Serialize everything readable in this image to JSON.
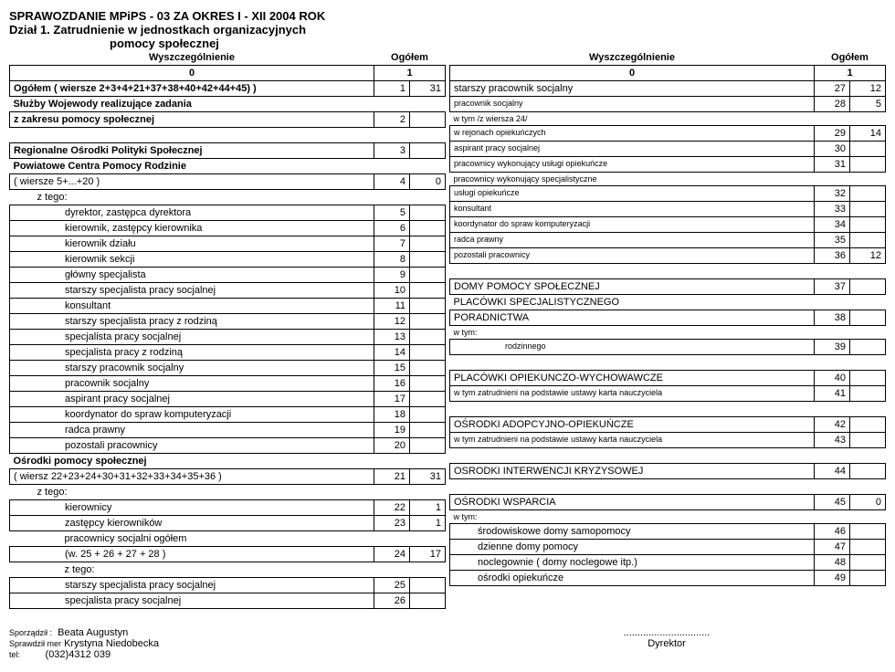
{
  "report": {
    "title_line1": "SPRAWOZDANIE MPiPS - 03 ZA OKRES I - XII  2004 ROK",
    "title_line2": "Dział 1.   Zatrudnienie w jednostkach organizacyjnych",
    "title_line3": "pomocy społecznej"
  },
  "left": {
    "header_label": "Wyszczególnienie",
    "header_total": "Ogółem",
    "hrow0": "0",
    "hrow1": "1",
    "rows": [
      {
        "label": "Ogółem ( wiersze 2+3+4+21+37+38+40+42+44+45) )",
        "n": "1",
        "v": "31",
        "indent": 0,
        "bold": true
      },
      {
        "label": "Służby Wojewody realizujące zadania",
        "n": "",
        "v": "",
        "indent": 0,
        "bold": true,
        "rowonly": true
      },
      {
        "label": "z zakresu pomocy społecznej",
        "n": "2",
        "v": "",
        "indent": 0,
        "bold": true
      },
      {
        "label": "",
        "n": "",
        "v": "",
        "indent": 0,
        "spacer": true
      },
      {
        "label": "Regionalne Ośrodki Polityki Społecznej",
        "n": "3",
        "v": "",
        "indent": 0,
        "bold": true
      },
      {
        "label": "Powiatowe Centra Pomocy Rodzinie",
        "n": "",
        "v": "",
        "indent": 0,
        "bold": true,
        "rowonly": true
      },
      {
        "label": "( wiersze 5+...+20 )",
        "n": "4",
        "v": "0",
        "indent": 0
      },
      {
        "label": "z tego:",
        "n": "",
        "v": "",
        "indent": 1,
        "textonly": true
      },
      {
        "label": "dyrektor, zastępca dyrektora",
        "n": "5",
        "v": "",
        "indent": 2
      },
      {
        "label": "kierownik, zastępcy kierownika",
        "n": "6",
        "v": "",
        "indent": 2
      },
      {
        "label": "kierownik działu",
        "n": "7",
        "v": "",
        "indent": 2
      },
      {
        "label": "kierownik sekcji",
        "n": "8",
        "v": "",
        "indent": 2
      },
      {
        "label": "główny specjalista",
        "n": "9",
        "v": "",
        "indent": 2
      },
      {
        "label": "starszy specjalista pracy socjalnej",
        "n": "10",
        "v": "",
        "indent": 2
      },
      {
        "label": "konsultant",
        "n": "11",
        "v": "",
        "indent": 2
      },
      {
        "label": "starszy specjalista pracy z rodziną",
        "n": "12",
        "v": "",
        "indent": 2
      },
      {
        "label": "specjalista pracy socjalnej",
        "n": "13",
        "v": "",
        "indent": 2
      },
      {
        "label": "specjalista pracy z rodziną",
        "n": "14",
        "v": "",
        "indent": 2
      },
      {
        "label": "starszy pracownik socjalny",
        "n": "15",
        "v": "",
        "indent": 2
      },
      {
        "label": "pracownik socjalny",
        "n": "16",
        "v": "",
        "indent": 2
      },
      {
        "label": "aspirant pracy socjalnej",
        "n": "17",
        "v": "",
        "indent": 2
      },
      {
        "label": "koordynator do spraw komputeryzacji",
        "n": "18",
        "v": "",
        "indent": 2
      },
      {
        "label": "radca prawny",
        "n": "19",
        "v": "",
        "indent": 2
      },
      {
        "label": "pozostali pracownicy",
        "n": "20",
        "v": "",
        "indent": 2
      },
      {
        "label": "Ośrodki pomocy społecznej",
        "n": "",
        "v": "",
        "indent": 0,
        "bold": true,
        "textonly": true
      },
      {
        "label": "( wiersz 22+23+24+30+31+32+33+34+35+36 )",
        "n": "21",
        "v": "31",
        "indent": 0
      },
      {
        "label": "z tego:",
        "n": "",
        "v": "",
        "indent": 1,
        "textonly": true
      },
      {
        "label": "kierownicy",
        "n": "22",
        "v": "1",
        "indent": 2
      },
      {
        "label": "zastępcy kierowników",
        "n": "23",
        "v": "1",
        "indent": 2
      },
      {
        "label": "pracownicy socjalni ogółem",
        "n": "",
        "v": "",
        "indent": 2,
        "textonly": true
      },
      {
        "label": "(w. 25 + 26 + 27 + 28 )",
        "n": "24",
        "v": "17",
        "indent": 2
      },
      {
        "label": "z tego:",
        "n": "",
        "v": "",
        "indent": 2,
        "textonly": true
      },
      {
        "label": "starszy specjalista pracy socjalnej",
        "n": "25",
        "v": "",
        "indent": 2
      },
      {
        "label": "specjalista pracy socjalnej",
        "n": "26",
        "v": "",
        "indent": 2
      }
    ]
  },
  "right": {
    "header_label": "Wyszczególnienie",
    "header_total": "Ogółem",
    "hrow0": "0",
    "hrow1": "1",
    "rows": [
      {
        "label": "starszy pracownik socjalny",
        "n": "27",
        "v": "12",
        "indent": 0
      },
      {
        "label": "pracownik socjalny",
        "n": "28",
        "v": "5",
        "indent": 0,
        "small": true
      },
      {
        "label": "w tym /z wiersza 24/",
        "n": "",
        "v": "",
        "indent": 0,
        "small": true,
        "textonly": true
      },
      {
        "label": "w rejonach opiekuńczych",
        "n": "29",
        "v": "14",
        "indent": 0,
        "small": true
      },
      {
        "label": "aspirant pracy socjalnej",
        "n": "30",
        "v": "",
        "indent": 0,
        "small": true
      },
      {
        "label": "pracownicy wykonujący usługi opiekuńcze",
        "n": "31",
        "v": "",
        "indent": 0,
        "small": true
      },
      {
        "label": "pracownicy wykonujący specjalistyczne",
        "n": "",
        "v": "",
        "indent": 0,
        "small": true,
        "textonly": true
      },
      {
        "label": "usługi opiekuńcze",
        "n": "32",
        "v": "",
        "indent": 0,
        "small": true
      },
      {
        "label": "konsultant",
        "n": "33",
        "v": "",
        "indent": 0,
        "small": true
      },
      {
        "label": "koordynator do spraw komputeryzacji",
        "n": "34",
        "v": "",
        "indent": 0,
        "small": true
      },
      {
        "label": "radca prawny",
        "n": "35",
        "v": "",
        "indent": 0,
        "small": true
      },
      {
        "label": "pozostali pracownicy",
        "n": "36",
        "v": "12",
        "indent": 0,
        "small": true
      },
      {
        "label": "",
        "n": "",
        "v": "",
        "spacer": true
      },
      {
        "label": "DOMY POMOCY SPOŁECZNEJ",
        "n": "37",
        "v": "",
        "indent": 0
      },
      {
        "label": "PLACÓWKI SPECJALISTYCZNEGO",
        "n": "",
        "v": "",
        "indent": 0,
        "textonly": true
      },
      {
        "label": "PORADNICTWA",
        "n": "38",
        "v": "",
        "indent": 0
      },
      {
        "label": "w tym:",
        "n": "",
        "v": "",
        "indent": 0,
        "small": true,
        "textonly": true
      },
      {
        "label": "rodzinnego",
        "n": "39",
        "v": "",
        "indent": 2,
        "small": true
      },
      {
        "label": "",
        "n": "",
        "v": "",
        "spacer": true
      },
      {
        "label": "PLACÓWKI OPIEKUNCZO-WYCHOWAWCZE",
        "n": "40",
        "v": "",
        "indent": 0
      },
      {
        "label": "w tym zatrudnieni na podstawie ustawy karta nauczyciela",
        "n": "41",
        "v": "",
        "indent": 0,
        "small": true
      },
      {
        "label": "",
        "n": "",
        "v": "",
        "spacer": true
      },
      {
        "label": "OŚRODKI ADOPCYJNO-OPIEKUŃCZE",
        "n": "42",
        "v": "",
        "indent": 0
      },
      {
        "label": "w tym zatrudnieni na podstawie ustawy karta nauczyciela",
        "n": "43",
        "v": "",
        "indent": 0,
        "small": true
      },
      {
        "label": "",
        "n": "",
        "v": "",
        "spacer": true
      },
      {
        "label": "OSRODKI INTERWENCJI KRYZYSOWEJ",
        "n": "44",
        "v": "",
        "indent": 0
      },
      {
        "label": "",
        "n": "",
        "v": "",
        "spacer": true
      },
      {
        "label": "OŚRODKI WSPARCIA",
        "n": "45",
        "v": "0",
        "indent": 0
      },
      {
        "label": "w tym:",
        "n": "",
        "v": "",
        "indent": 0,
        "small": true,
        "textonly": true
      },
      {
        "label": "środowiskowe domy samopomocy",
        "n": "46",
        "v": "",
        "indent": 1
      },
      {
        "label": "dzienne domy pomocy",
        "n": "47",
        "v": "",
        "indent": 1
      },
      {
        "label": "noclegownie ( domy noclegowe itp.)",
        "n": "48",
        "v": "",
        "indent": 1
      },
      {
        "label": "ośrodki opiekuńcze",
        "n": "49",
        "v": "",
        "indent": 1
      }
    ]
  },
  "footer": {
    "sp_label": "Sporządził :",
    "sp_name": "Beata Augustyn",
    "spr_label": "Sprawdził mer",
    "spr_name": "Krystyna Niedobecka",
    "tel_label": "tel:",
    "tel": "(032)4312 039",
    "dots": "...............................",
    "dir": "Dyrektor"
  }
}
